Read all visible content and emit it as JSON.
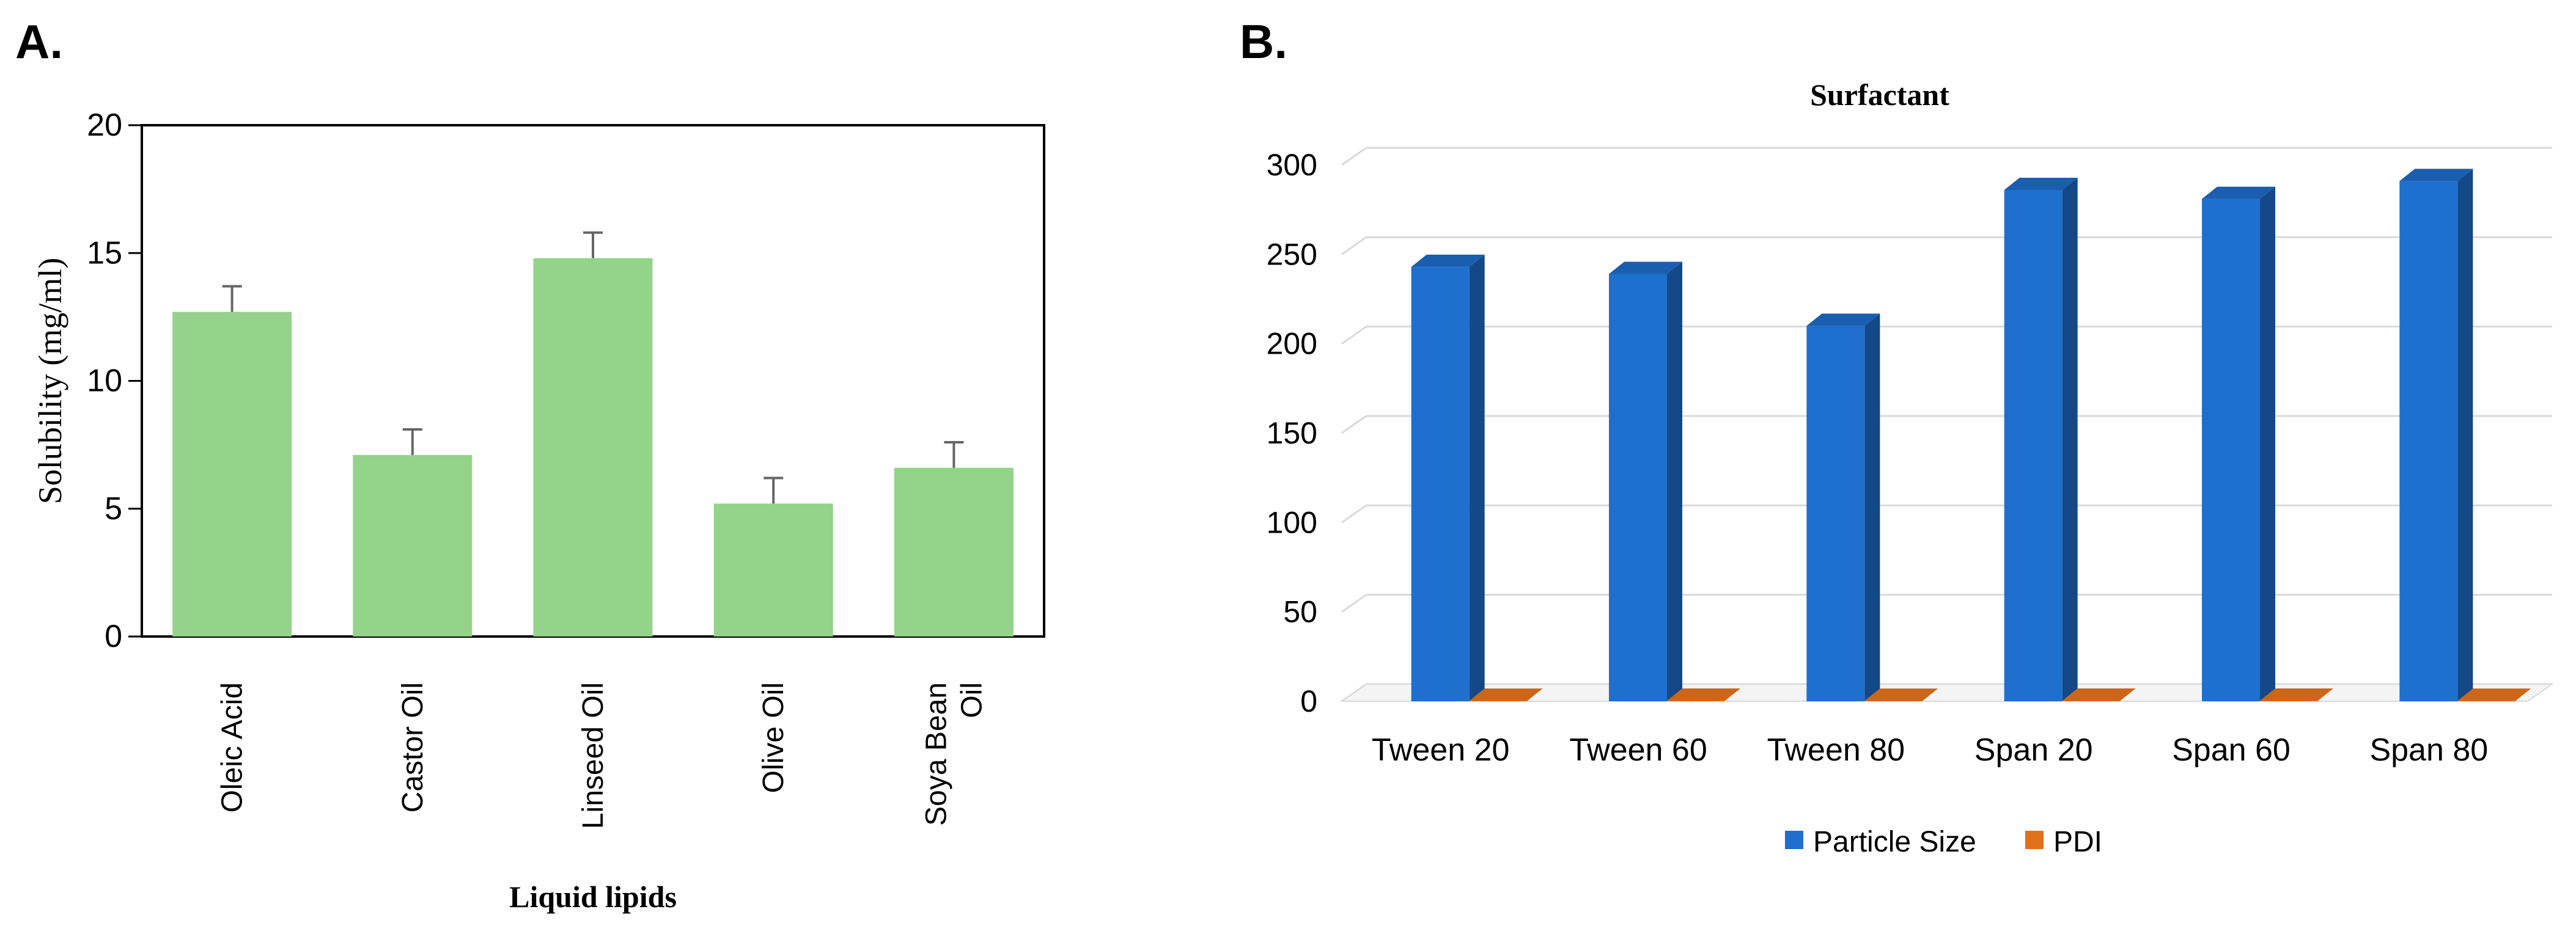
{
  "panels": {
    "a_label": "A.",
    "b_label": "B."
  },
  "chart_data": [
    {
      "type": "bar",
      "title": "",
      "xlabel": "Liquid lipids",
      "ylabel": "Solubility (mg/ml)",
      "ylim": [
        0,
        20
      ],
      "yticks": [
        0,
        5,
        10,
        15,
        20
      ],
      "categories": [
        "Oleic Acid",
        "Castor Oil",
        "Linseed Oil",
        "Olive Oil",
        "Soya Bean Oil"
      ],
      "category_lines": [
        [
          "Oleic Acid"
        ],
        [
          "Castor Oil"
        ],
        [
          "Linseed Oil"
        ],
        [
          "Olive Oil"
        ],
        [
          "Soya Bean",
          "Oil"
        ]
      ],
      "values": [
        12.7,
        7.1,
        14.8,
        5.2,
        6.6
      ],
      "errors": [
        1.0,
        1.0,
        1.0,
        1.0,
        1.0
      ],
      "bar_color": "#93d38a",
      "grid": false,
      "legend": "none"
    },
    {
      "type": "bar",
      "style": "3d-column",
      "title": "Surfactant",
      "xlabel": "",
      "ylabel": "",
      "ylim": [
        0,
        300
      ],
      "yticks": [
        0,
        50,
        100,
        150,
        200,
        250,
        300
      ],
      "categories": [
        "Tween 20",
        "Tween 60",
        "Tween 80",
        "Span 20",
        "Span 60",
        "Span 80"
      ],
      "series": [
        {
          "name": "Particle Size",
          "values": [
            243,
            239,
            210,
            286,
            281,
            291
          ],
          "color": "#1f6fce"
        },
        {
          "name": "PDI",
          "values": [
            0.32,
            0.35,
            0.3,
            0.33,
            0.36,
            0.31
          ],
          "color": "#e2711d"
        }
      ],
      "grid": true,
      "legend": "bottom"
    }
  ]
}
